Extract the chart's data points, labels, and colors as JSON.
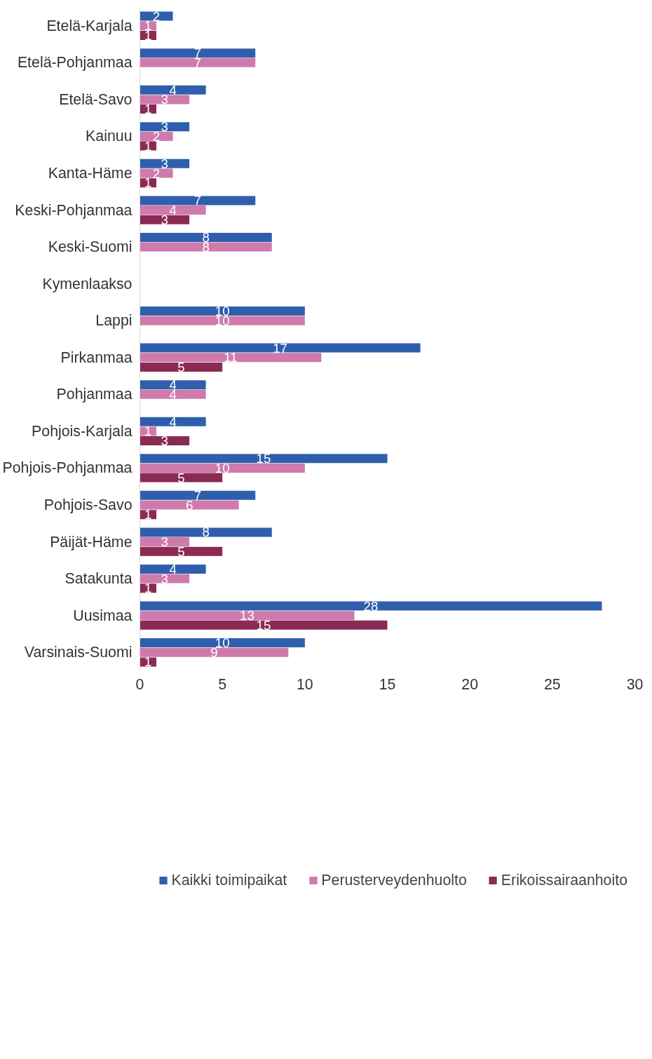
{
  "chart_data": {
    "type": "bar",
    "orientation": "horizontal",
    "categories": [
      "Etelä-Karjala",
      "Etelä-Pohjanmaa",
      "Etelä-Savo",
      "Kainuu",
      "Kanta-Häme",
      "Keski-Pohjanmaa",
      "Keski-Suomi",
      "Kymenlaakso",
      "Lappi",
      "Pirkanmaa",
      "Pohjanmaa",
      "Pohjois-Karjala",
      "Pohjois-Pohjanmaa",
      "Pohjois-Savo",
      "Päijät-Häme",
      "Satakunta",
      "Uusimaa",
      "Varsinais-Suomi"
    ],
    "series": [
      {
        "name": "Kaikki toimipaikat",
        "color": "#2f5fac",
        "values": [
          2,
          7,
          4,
          3,
          3,
          7,
          8,
          null,
          10,
          17,
          4,
          4,
          15,
          7,
          8,
          4,
          28,
          10
        ]
      },
      {
        "name": "Perusterveydenhuolto",
        "color": "#cf7aad",
        "values": [
          1,
          7,
          3,
          2,
          2,
          4,
          8,
          null,
          10,
          11,
          4,
          1,
          10,
          6,
          3,
          3,
          13,
          9
        ]
      },
      {
        "name": "Erikoissairaanhoito",
        "color": "#8b2a52",
        "values": [
          1,
          null,
          1,
          1,
          1,
          3,
          null,
          null,
          null,
          5,
          null,
          3,
          5,
          1,
          5,
          1,
          15,
          1
        ]
      }
    ],
    "xlim": [
      0,
      30
    ],
    "xticks": [
      0,
      5,
      10,
      15,
      20,
      25,
      30
    ],
    "grid": false,
    "legend": "bottom",
    "data_labels": true
  }
}
